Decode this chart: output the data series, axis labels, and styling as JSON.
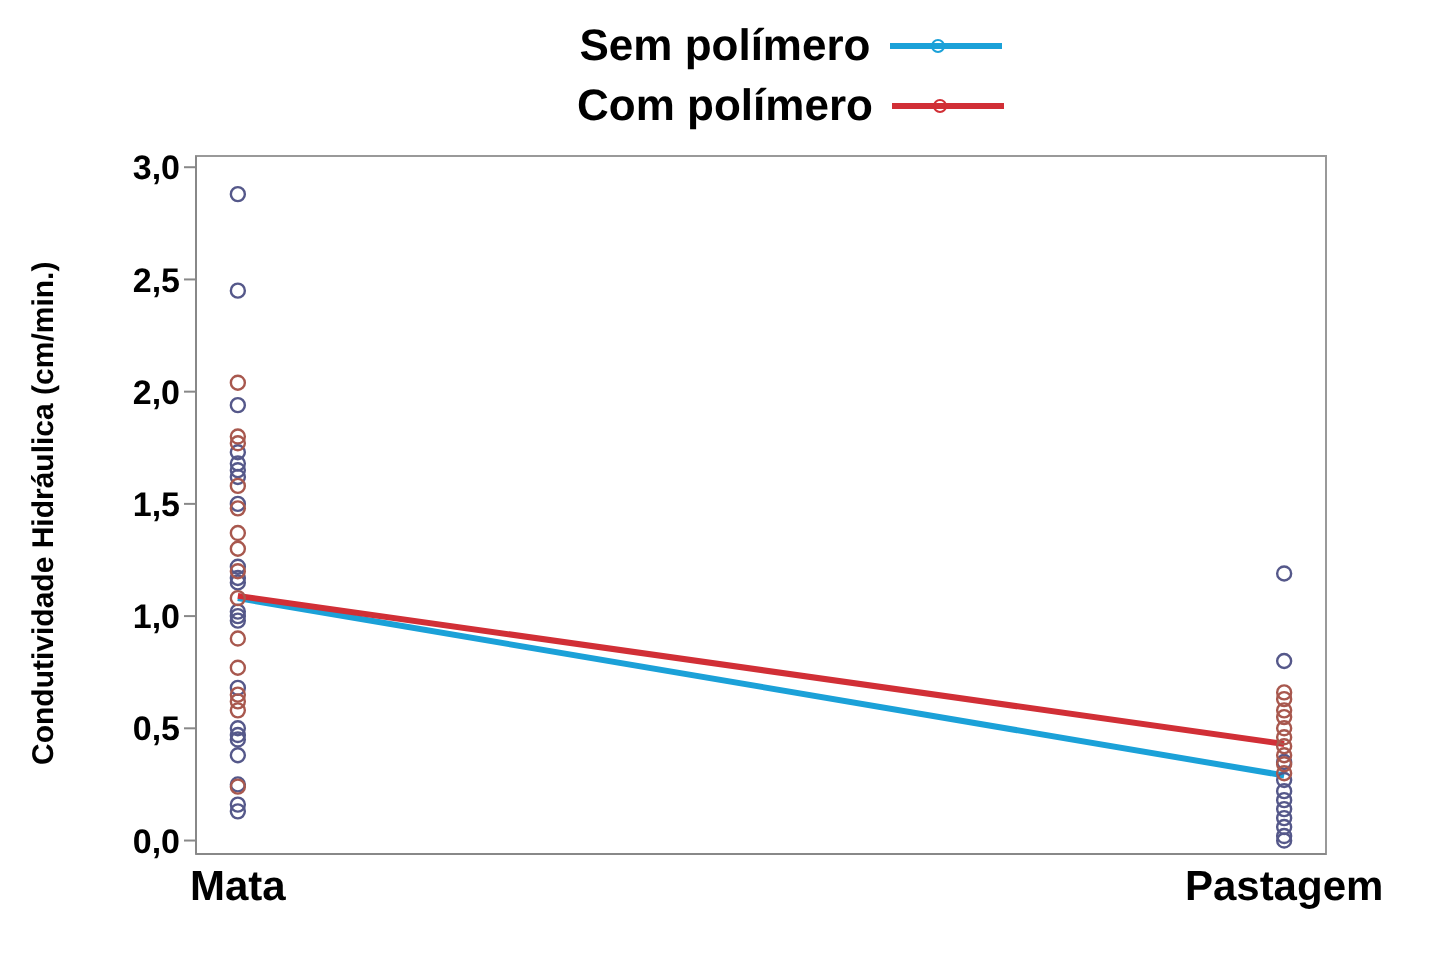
{
  "chart_data": {
    "type": "line",
    "ylabel": "Condutividade Hidráulica (cm/min.)",
    "categories": [
      "Mata",
      "Pastagem"
    ],
    "series": [
      {
        "name": "Sem polímero",
        "color": "#1ba1d8",
        "values": [
          1.08,
          0.29
        ],
        "marker": "none"
      },
      {
        "name": "Com polímero",
        "color": "#d12f36",
        "values": [
          1.09,
          0.43
        ],
        "marker": "none"
      },
      {
        "type": "scatter",
        "color": "#55588a",
        "marker": "circle",
        "x": [
          "Mata",
          "Mata",
          "Mata",
          "Mata",
          "Mata",
          "Mata",
          "Mata",
          "Mata",
          "Mata",
          "Mata",
          "Mata",
          "Mata",
          "Mata",
          "Mata",
          "Mata",
          "Mata",
          "Mata",
          "Mata",
          "Mata",
          "Mata",
          "Mata",
          "Mata",
          "Pastagem",
          "Pastagem",
          "Pastagem",
          "Pastagem",
          "Pastagem",
          "Pastagem",
          "Pastagem",
          "Pastagem",
          "Pastagem",
          "Pastagem",
          "Pastagem"
        ],
        "values": [
          2.88,
          2.45,
          1.94,
          1.73,
          1.68,
          1.65,
          1.62,
          1.5,
          1.22,
          1.17,
          1.15,
          1.02,
          1.0,
          0.98,
          0.68,
          0.5,
          0.47,
          0.45,
          0.38,
          0.25,
          0.16,
          0.13,
          1.19,
          0.8,
          0.35,
          0.27,
          0.22,
          0.18,
          0.14,
          0.1,
          0.06,
          0.02,
          0.0
        ]
      },
      {
        "type": "scatter",
        "color": "#a8584e",
        "marker": "circle",
        "x": [
          "Mata",
          "Mata",
          "Mata",
          "Mata",
          "Mata",
          "Mata",
          "Mata",
          "Mata",
          "Mata",
          "Mata",
          "Mata",
          "Mata",
          "Mata",
          "Mata",
          "Mata",
          "Pastagem",
          "Pastagem",
          "Pastagem",
          "Pastagem",
          "Pastagem",
          "Pastagem",
          "Pastagem",
          "Pastagem",
          "Pastagem",
          "Pastagem"
        ],
        "values": [
          2.04,
          1.8,
          1.77,
          1.58,
          1.48,
          1.37,
          1.3,
          1.2,
          1.08,
          0.9,
          0.77,
          0.65,
          0.62,
          0.58,
          0.24,
          0.66,
          0.63,
          0.58,
          0.55,
          0.5,
          0.46,
          0.42,
          0.38,
          0.34,
          0.3
        ]
      }
    ],
    "ylim": [
      -0.06,
      3.05
    ],
    "yticks": [
      {
        "value": 0,
        "label": "0,0"
      },
      {
        "value": 0.5,
        "label": "0,5"
      },
      {
        "value": 1,
        "label": "1,0"
      },
      {
        "value": 1.5,
        "label": "1,5"
      },
      {
        "value": 2,
        "label": "2,0"
      },
      {
        "value": 2.5,
        "label": "2,5"
      },
      {
        "value": 3,
        "label": "3,0"
      }
    ],
    "grid": false,
    "legend": "top",
    "line_style": "solid"
  }
}
